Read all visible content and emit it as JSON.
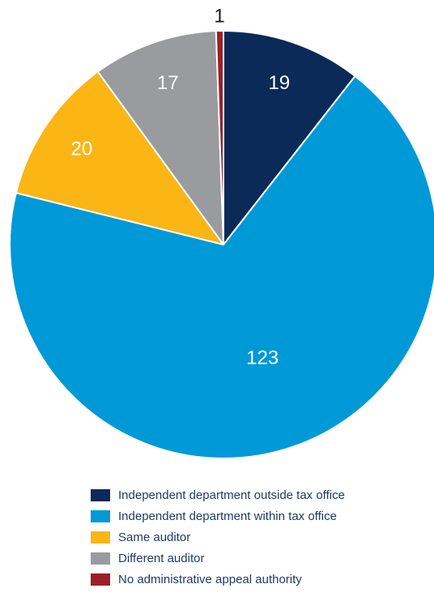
{
  "chart_data": {
    "type": "pie",
    "title": "",
    "start_angle_deg": 0,
    "direction": "clockwise",
    "legend_placement": "bottom",
    "slices": [
      {
        "label": "Independent department outside tax office",
        "value": 19,
        "color": "#0b2a57",
        "label_color": "#ffffff"
      },
      {
        "label": "Independent department within tax office",
        "value": 123,
        "color": "#0099d8",
        "label_color": "#ffffff"
      },
      {
        "label": "Same auditor",
        "value": 20,
        "color": "#fbb515",
        "label_color": "#ffffff"
      },
      {
        "label": "Different auditor",
        "value": 17,
        "color": "#9a9b9f",
        "label_color": "#ffffff"
      },
      {
        "label": "No administrative appeal authority",
        "value": 1,
        "color": "#9b1f2a",
        "label_color": "#1a1a1a"
      }
    ]
  }
}
